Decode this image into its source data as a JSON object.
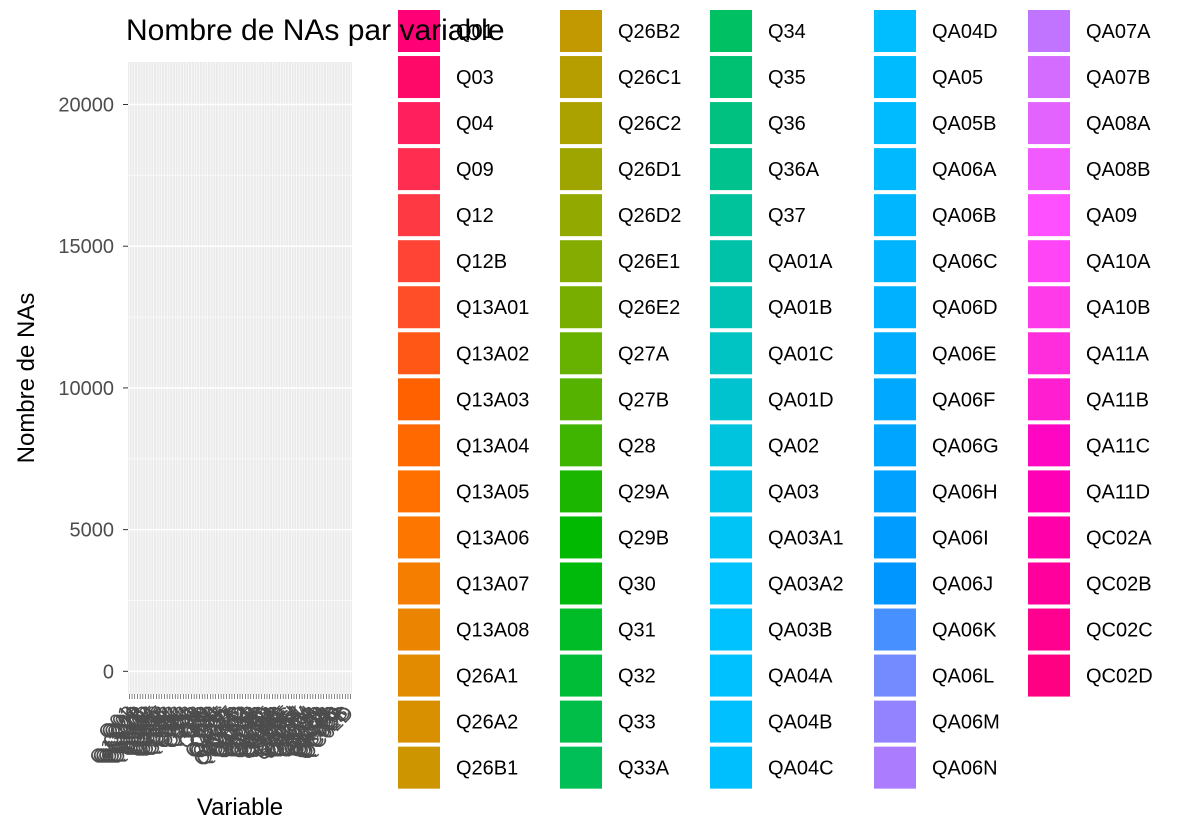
{
  "chart_data": {
    "type": "bar",
    "title": "Nombre de NAs par variable",
    "xlabel": "Variable",
    "ylabel": "Nombre de NAs",
    "ylim": [
      -800,
      21500
    ],
    "yticks": [
      0,
      5000,
      10000,
      15000,
      20000
    ],
    "panel_background": "#EBEBEB",
    "grid": true,
    "legend_position": "right",
    "categories": [
      "Q01",
      "Q03",
      "Q04",
      "Q09",
      "Q12",
      "Q12B",
      "Q13A01",
      "Q13A02",
      "Q13A03",
      "Q13A04",
      "Q13A05",
      "Q13A06",
      "Q13A07",
      "Q13A08",
      "Q26A1",
      "Q26A2",
      "Q26B1",
      "Q26B2",
      "Q26C1",
      "Q26C2",
      "Q26D1",
      "Q26D2",
      "Q26E1",
      "Q26E2",
      "Q27A",
      "Q27B",
      "Q28",
      "Q29A",
      "Q29B",
      "Q30",
      "Q31",
      "Q32",
      "Q33",
      "Q33A",
      "Q34",
      "Q35",
      "Q36",
      "Q36A",
      "Q37",
      "QA01A",
      "QA01B",
      "QA01C",
      "QA01D",
      "QA02",
      "QA03",
      "QA03A1",
      "QA03A2",
      "QA03B",
      "QA04A",
      "QA04B",
      "QA04C",
      "QA04D",
      "QA05",
      "QA05B",
      "QA06A",
      "QA06B",
      "QA06C",
      "QA06D",
      "QA06E",
      "QA06F",
      "QA06G",
      "QA06H",
      "QA06I",
      "QA06J",
      "QA06K",
      "QA06L",
      "QA06M",
      "QA06N",
      "QA07A",
      "QA07B",
      "QA08A",
      "QA08B",
      "QA09",
      "QA10A",
      "QA10B",
      "QA11A",
      "QA11B",
      "QA11C",
      "QA11D",
      "QC02A",
      "QC02B",
      "QC02C",
      "QC02D"
    ],
    "values": [
      0,
      0,
      0,
      0,
      0,
      0,
      0,
      0,
      0,
      0,
      0,
      0,
      0,
      0,
      0,
      0,
      0,
      0,
      0,
      0,
      0,
      0,
      0,
      0,
      0,
      0,
      0,
      0,
      0,
      0,
      0,
      0,
      0,
      0,
      0,
      0,
      0,
      0,
      0,
      0,
      0,
      0,
      0,
      0,
      0,
      0,
      0,
      0,
      0,
      0,
      0,
      0,
      0,
      0,
      0,
      0,
      0,
      0,
      0,
      0,
      0,
      0,
      0,
      0,
      0,
      0,
      0,
      0,
      0,
      0,
      0,
      0,
      0,
      0,
      0,
      0,
      0,
      0,
      0,
      0,
      0,
      0,
      0
    ]
  }
}
